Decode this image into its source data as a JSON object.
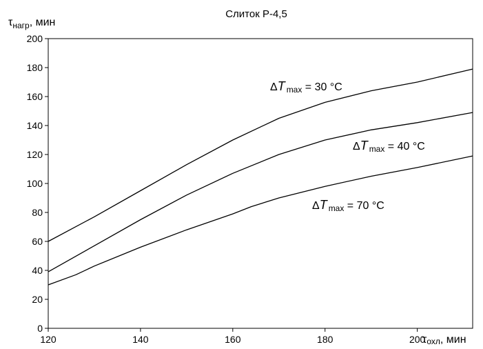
{
  "chart_data": {
    "type": "line",
    "title": "Слиток Р-4,5",
    "ylabel": {
      "symbol": "τ",
      "sub": "нагр",
      "unit": ", мин"
    },
    "xlabel": {
      "symbol": "τ",
      "sub": "охл",
      "unit": ", мин"
    },
    "xlim": [
      120,
      212
    ],
    "ylim": [
      0,
      200
    ],
    "x_ticks": [
      120,
      140,
      160,
      180,
      200
    ],
    "y_ticks": [
      0,
      20,
      40,
      60,
      80,
      100,
      120,
      140,
      160,
      180,
      200
    ],
    "grid": false,
    "series": [
      {
        "name": "ΔT max = 30 °C",
        "label": {
          "delta": "Δ",
          "T": "T",
          "sub": "max",
          "rest": " = 30 °C"
        },
        "x": [
          120,
          130,
          140,
          150,
          160,
          170,
          180,
          190,
          200,
          212
        ],
        "y": [
          60,
          77,
          95,
          113,
          130,
          145,
          156,
          164,
          170,
          179
        ]
      },
      {
        "name": "ΔT max = 40 °C",
        "label": {
          "delta": "Δ",
          "T": "T",
          "sub": "max",
          "rest": " = 40 °C"
        },
        "x": [
          120,
          130,
          140,
          150,
          160,
          170,
          180,
          190,
          200,
          212
        ],
        "y": [
          39,
          57,
          75,
          92,
          107,
          120,
          130,
          137,
          142,
          149
        ]
      },
      {
        "name": "ΔT max = 70 °C",
        "label": {
          "delta": "Δ",
          "T": "T",
          "sub": "max",
          "rest": " = 70 °C"
        },
        "x": [
          120,
          126,
          130,
          140,
          150,
          160,
          164,
          170,
          180,
          190,
          200,
          212
        ],
        "y": [
          30,
          37,
          43,
          56,
          68,
          79,
          84,
          90,
          98,
          105,
          111,
          119
        ]
      }
    ]
  }
}
